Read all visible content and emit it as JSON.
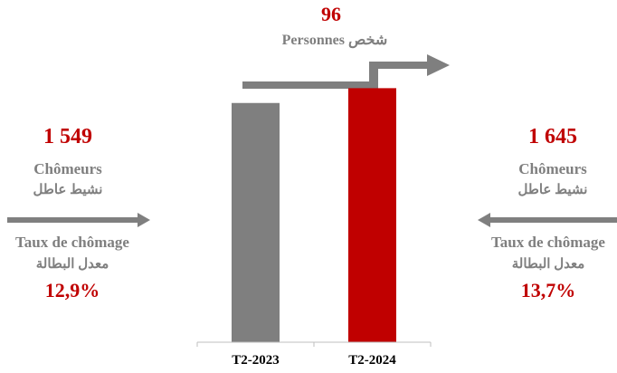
{
  "colors": {
    "grey": "#7f7f7f",
    "red": "#c00000",
    "axis": "#bfbfbf"
  },
  "change": {
    "value": "96",
    "label_fr": "Personnes",
    "label_ar": "شخص"
  },
  "left_panel": {
    "count": "1 549",
    "label_fr": "Chômeurs",
    "label_ar": "نشيط عاطل",
    "rate_label_fr": "Taux de chômage",
    "rate_label_ar": "معدل البطالة",
    "rate": "12,9%"
  },
  "right_panel": {
    "count": "1 645",
    "label_fr": "Chômeurs",
    "label_ar": "نشيط عاطل",
    "rate_label_fr": "Taux de chômage",
    "rate_label_ar": "معدل البطالة",
    "rate": "13,7%"
  },
  "chart_data": {
    "type": "bar",
    "categories": [
      "T2-2023",
      "T2-2024"
    ],
    "values": [
      1549,
      1645
    ],
    "colors": [
      "#7f7f7f",
      "#c00000"
    ],
    "ylim": [
      0,
      1700
    ],
    "grid": false
  }
}
